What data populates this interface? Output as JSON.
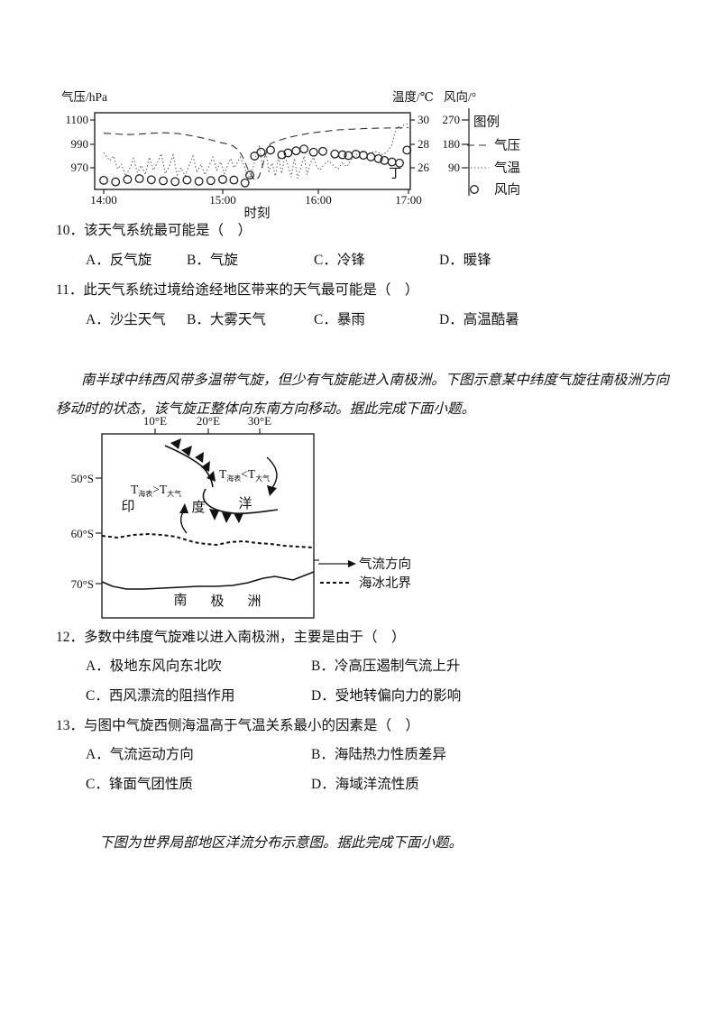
{
  "chart_data": [
    {
      "type": "line",
      "id": "weather-time-series",
      "x_axis": {
        "label": "时刻",
        "tick_labels": [
          "14:00",
          "15:00",
          "16:00",
          "17:00"
        ],
        "unit": "minutes-after-14:00"
      },
      "y_axes": [
        {
          "label": "气压/hPa",
          "ticks": [
            "1100",
            "990",
            "970"
          ]
        },
        {
          "label": "温度/℃",
          "ticks": [
            "30",
            "28",
            "26"
          ]
        },
        {
          "label": "风向/°",
          "ticks": [
            "270",
            "180",
            "90"
          ]
        }
      ],
      "legend": {
        "title": "图例",
        "entries": [
          "气压",
          "气温",
          "风向"
        ]
      },
      "point_label": "丁",
      "series": [
        {
          "name": "气压",
          "unit": "hPa",
          "style": "dashed",
          "axis": 0,
          "points": [
            [
              0,
              1040
            ],
            [
              6,
              1037
            ],
            [
              12,
              1034
            ],
            [
              18,
              1036
            ],
            [
              24,
              1040
            ],
            [
              30,
              1042
            ],
            [
              34,
              1041
            ],
            [
              38,
              1038
            ],
            [
              42,
              1032
            ],
            [
              46,
              1026
            ],
            [
              50,
              1018
            ],
            [
              54,
              1010
            ],
            [
              58,
              1000
            ],
            [
              62,
              993
            ],
            [
              66,
              989
            ],
            [
              70,
              985
            ],
            [
              73,
              978
            ],
            [
              76,
              968
            ],
            [
              79,
              961
            ],
            [
              81,
              959
            ],
            [
              83,
              963
            ],
            [
              85,
              972
            ],
            [
              87,
              982
            ],
            [
              90,
              993
            ],
            [
              93,
              1002
            ],
            [
              97,
              1012
            ],
            [
              102,
              1022
            ],
            [
              107,
              1030
            ],
            [
              113,
              1038
            ],
            [
              119,
              1044
            ],
            [
              126,
              1050
            ],
            [
              133,
              1055
            ],
            [
              141,
              1058
            ],
            [
              150,
              1061
            ],
            [
              160,
              1063
            ],
            [
              170,
              1064
            ],
            [
              180,
              1065
            ]
          ]
        },
        {
          "name": "气温",
          "unit": "℃",
          "style": "dotted",
          "axis": 1,
          "points": [
            [
              0,
              27.3
            ],
            [
              3,
              26.6
            ],
            [
              5,
              27.0
            ],
            [
              7,
              25.9
            ],
            [
              9,
              26.3
            ],
            [
              11,
              25.3
            ],
            [
              13,
              25.9
            ],
            [
              15,
              26.8
            ],
            [
              17,
              25.6
            ],
            [
              19,
              26.2
            ],
            [
              21,
              25.4
            ],
            [
              23,
              26.9
            ],
            [
              25,
              25.8
            ],
            [
              27,
              26.4
            ],
            [
              29,
              27.2
            ],
            [
              31,
              25.5
            ],
            [
              33,
              26.1
            ],
            [
              35,
              27.1
            ],
            [
              37,
              25.4
            ],
            [
              39,
              26.0
            ],
            [
              41,
              25.3
            ],
            [
              43,
              26.2
            ],
            [
              45,
              27.0
            ],
            [
              47,
              25.6
            ],
            [
              49,
              26.3
            ],
            [
              51,
              25.4
            ],
            [
              53,
              26.1
            ],
            [
              55,
              26.9
            ],
            [
              57,
              25.8
            ],
            [
              59,
              26.5
            ],
            [
              61,
              25.5
            ],
            [
              63,
              26.2
            ],
            [
              65,
              26.8
            ],
            [
              67,
              26.0
            ],
            [
              69,
              26.4
            ],
            [
              71,
              26.9
            ],
            [
              73,
              26.3
            ],
            [
              75,
              25.6
            ],
            [
              77,
              25.1
            ],
            [
              79,
              26.0
            ],
            [
              81,
              27.1
            ],
            [
              83,
              27.8
            ],
            [
              85,
              26.0
            ],
            [
              87,
              27.5
            ],
            [
              89,
              25.7
            ],
            [
              91,
              26.4
            ],
            [
              93,
              25.3
            ],
            [
              95,
              26.9
            ],
            [
              97,
              25.5
            ],
            [
              99,
              27.0
            ],
            [
              101,
              26.2
            ],
            [
              103,
              25.2
            ],
            [
              105,
              26.8
            ],
            [
              107,
              25.1
            ],
            [
              109,
              26.0
            ],
            [
              111,
              27.0
            ],
            [
              113,
              25.4
            ],
            [
              115,
              26.4
            ],
            [
              117,
              26.9
            ],
            [
              119,
              26.1
            ],
            [
              121,
              25.8
            ],
            [
              124,
              26.3
            ],
            [
              127,
              26.6
            ],
            [
              130,
              26.2
            ],
            [
              133,
              25.9
            ],
            [
              136,
              26.4
            ],
            [
              139,
              26.1
            ],
            [
              142,
              26.7
            ],
            [
              145,
              27.1
            ],
            [
              148,
              27.4
            ],
            [
              151,
              27.3
            ],
            [
              154,
              27.2
            ],
            [
              157,
              27.4
            ],
            [
              160,
              27.3
            ],
            [
              163,
              27.1
            ],
            [
              166,
              27.4
            ],
            [
              169,
              28.0
            ],
            [
              171,
              29.0
            ],
            [
              173,
              29.5
            ],
            [
              175,
              29.3
            ],
            [
              177,
              29.6
            ],
            [
              180,
              29.7
            ]
          ]
        },
        {
          "name": "风向",
          "unit": "°",
          "style": "circles",
          "axis": 2,
          "points": [
            [
              0,
              42
            ],
            [
              6,
              36
            ],
            [
              12,
              45
            ],
            [
              18,
              48
            ],
            [
              24,
              44
            ],
            [
              30,
              40
            ],
            [
              36,
              37
            ],
            [
              42,
              43
            ],
            [
              48,
              38
            ],
            [
              54,
              41
            ],
            [
              60,
              45
            ],
            [
              67,
              43
            ],
            [
              74,
              32
            ],
            [
              77,
              62
            ],
            [
              80,
              135
            ],
            [
              84,
              150
            ],
            [
              90,
              158
            ],
            [
              97,
              140
            ],
            [
              101,
              147
            ],
            [
              106,
              155
            ],
            [
              111,
              162
            ],
            [
              117,
              150
            ],
            [
              123,
              153
            ],
            [
              131,
              143
            ],
            [
              136,
              140
            ],
            [
              140,
              137
            ],
            [
              145,
              142
            ],
            [
              150,
              138
            ],
            [
              155,
              132
            ],
            [
              160,
              125
            ],
            [
              164,
              118
            ],
            [
              169,
              112
            ],
            [
              174,
              108
            ],
            [
              179,
              158
            ]
          ]
        }
      ]
    },
    {
      "type": "diagram",
      "id": "cyclone-approaching-antarctica-map",
      "lon_ticks": [
        "10°E",
        "20°E",
        "30°E"
      ],
      "lat_ticks": [
        "50°S",
        "60°S",
        "70°S"
      ],
      "sst_warm_label": {
        "T1": "T",
        "sub1": "海表",
        "op": ">",
        "T2": "T",
        "sub2": "大气"
      },
      "sst_cold_label": {
        "T1": "T",
        "sub1": "海表",
        "op": "<",
        "T2": "T",
        "sub2": "大气"
      },
      "ocean_chars": [
        "印",
        "度",
        "洋"
      ],
      "continent_chars": [
        "南",
        "极",
        "洲"
      ],
      "legend": [
        {
          "symbol": "arrow",
          "label": "气流方向"
        },
        {
          "symbol": "dashed-line",
          "label": "海冰北界"
        }
      ]
    }
  ],
  "paragraphs": {
    "cyclone_intro": "南半球中纬西风带多温带气旋，但少有气旋能进入南极洲。下图示意某中纬度气旋往南极洲方向移动时的状态，该气旋正整体向东南方向移动。据此完成下面小题。",
    "current_intro": "下图为世界局部地区洋流分布示意图。据此完成下面小题。"
  },
  "questions": [
    {
      "stem": "10．该天气系统最可能是（　）",
      "options": [
        "A．反气旋",
        "B．气旋",
        "C．冷锋",
        "D．暖锋"
      ]
    },
    {
      "stem": "11．此天气系统过境给途经地区带来的天气最可能是（　）",
      "options": [
        "A．沙尘天气",
        "B．大雾天气",
        "C．暴雨",
        "D．高温酷暑"
      ]
    },
    {
      "stem": "12．多数中纬度气旋难以进入南极洲，主要是由于（　）",
      "options": [
        "A．极地东风向东北吹",
        "B．冷高压遏制气流上升",
        "C．西风漂流的阻挡作用",
        "D．受地转偏向力的影响"
      ]
    },
    {
      "stem": "13．与图中气旋西侧海温高于气温关系最小的因素是（　）",
      "options": [
        "A．气流运动方向",
        "B．海陆热力性质差异",
        "C．锋面气团性质",
        "D．海域洋流性质"
      ]
    }
  ]
}
